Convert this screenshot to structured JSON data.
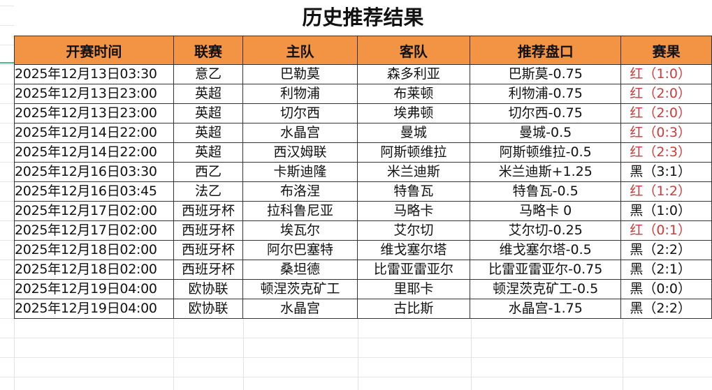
{
  "title": "历史推荐结果",
  "headers": [
    "开赛时间",
    "联赛",
    "主队",
    "客队",
    "推荐盘口",
    "赛果"
  ],
  "colors": {
    "header_bg": "#f39444",
    "win": "#d03a3a",
    "loss": "#111111"
  },
  "rows": [
    [
      "2025年12月13日03:30",
      "意乙",
      "巴勒莫",
      "森多利亚",
      "巴斯莫-0.75",
      "红（1:0）"
    ],
    [
      "2025年12月13日23:00",
      "英超",
      "利物浦",
      "布莱顿",
      "利物浦-0.75",
      "红（2:0）"
    ],
    [
      "2025年12月13日23:00",
      "英超",
      "切尔西",
      "埃弗顿",
      "切尔西-0.75",
      "红（2:0）"
    ],
    [
      "2025年12月14日22:00",
      "英超",
      "水晶宫",
      "曼城",
      "曼城-0.5",
      "红（0:3）"
    ],
    [
      "2025年12月14日22:00",
      "英超",
      "西汉姆联",
      "阿斯顿维拉",
      "阿斯顿维拉-0.5",
      "红（2:3）"
    ],
    [
      "2025年12月16日03:30",
      "西乙",
      "卡斯迪隆",
      "米兰迪斯",
      "米兰迪斯+1.25",
      "黑（3:1）"
    ],
    [
      "2025年12月16日03:45",
      "法乙",
      "布洛涅",
      "特鲁瓦",
      "特鲁瓦-0.5",
      "红（1:2）"
    ],
    [
      "2025年12月17日02:00",
      "西班牙杯",
      "拉科鲁尼亚",
      "马略卡",
      "马略卡 0",
      "黑（1:0）"
    ],
    [
      "2025年12月17日02:00",
      "西班牙杯",
      "埃瓦尔",
      "艾尔切",
      "艾尔切-0.25",
      "红（0:1）"
    ],
    [
      "2025年12月18日02:00",
      "西班牙杯",
      "阿尔巴塞特",
      "维戈塞尔塔",
      "维戈塞尔塔-0.5",
      "黑（2:2）"
    ],
    [
      "2025年12月18日02:00",
      "西班牙杯",
      "桑坦德",
      "比雷亚雷亚尔",
      "比雷亚雷亚尔-0.75",
      "黑（2:1）"
    ],
    [
      "2025年12月19日04:00",
      "欧协联",
      "顿涅茨克矿工",
      "里耶卡",
      "顿涅茨克矿工-0.5",
      "黑（0:0）"
    ],
    [
      "2025年12月19日04:00",
      "欧协联",
      "水晶宫",
      "古比斯",
      "水晶宫-1.75",
      "黑（2:2）"
    ]
  ]
}
